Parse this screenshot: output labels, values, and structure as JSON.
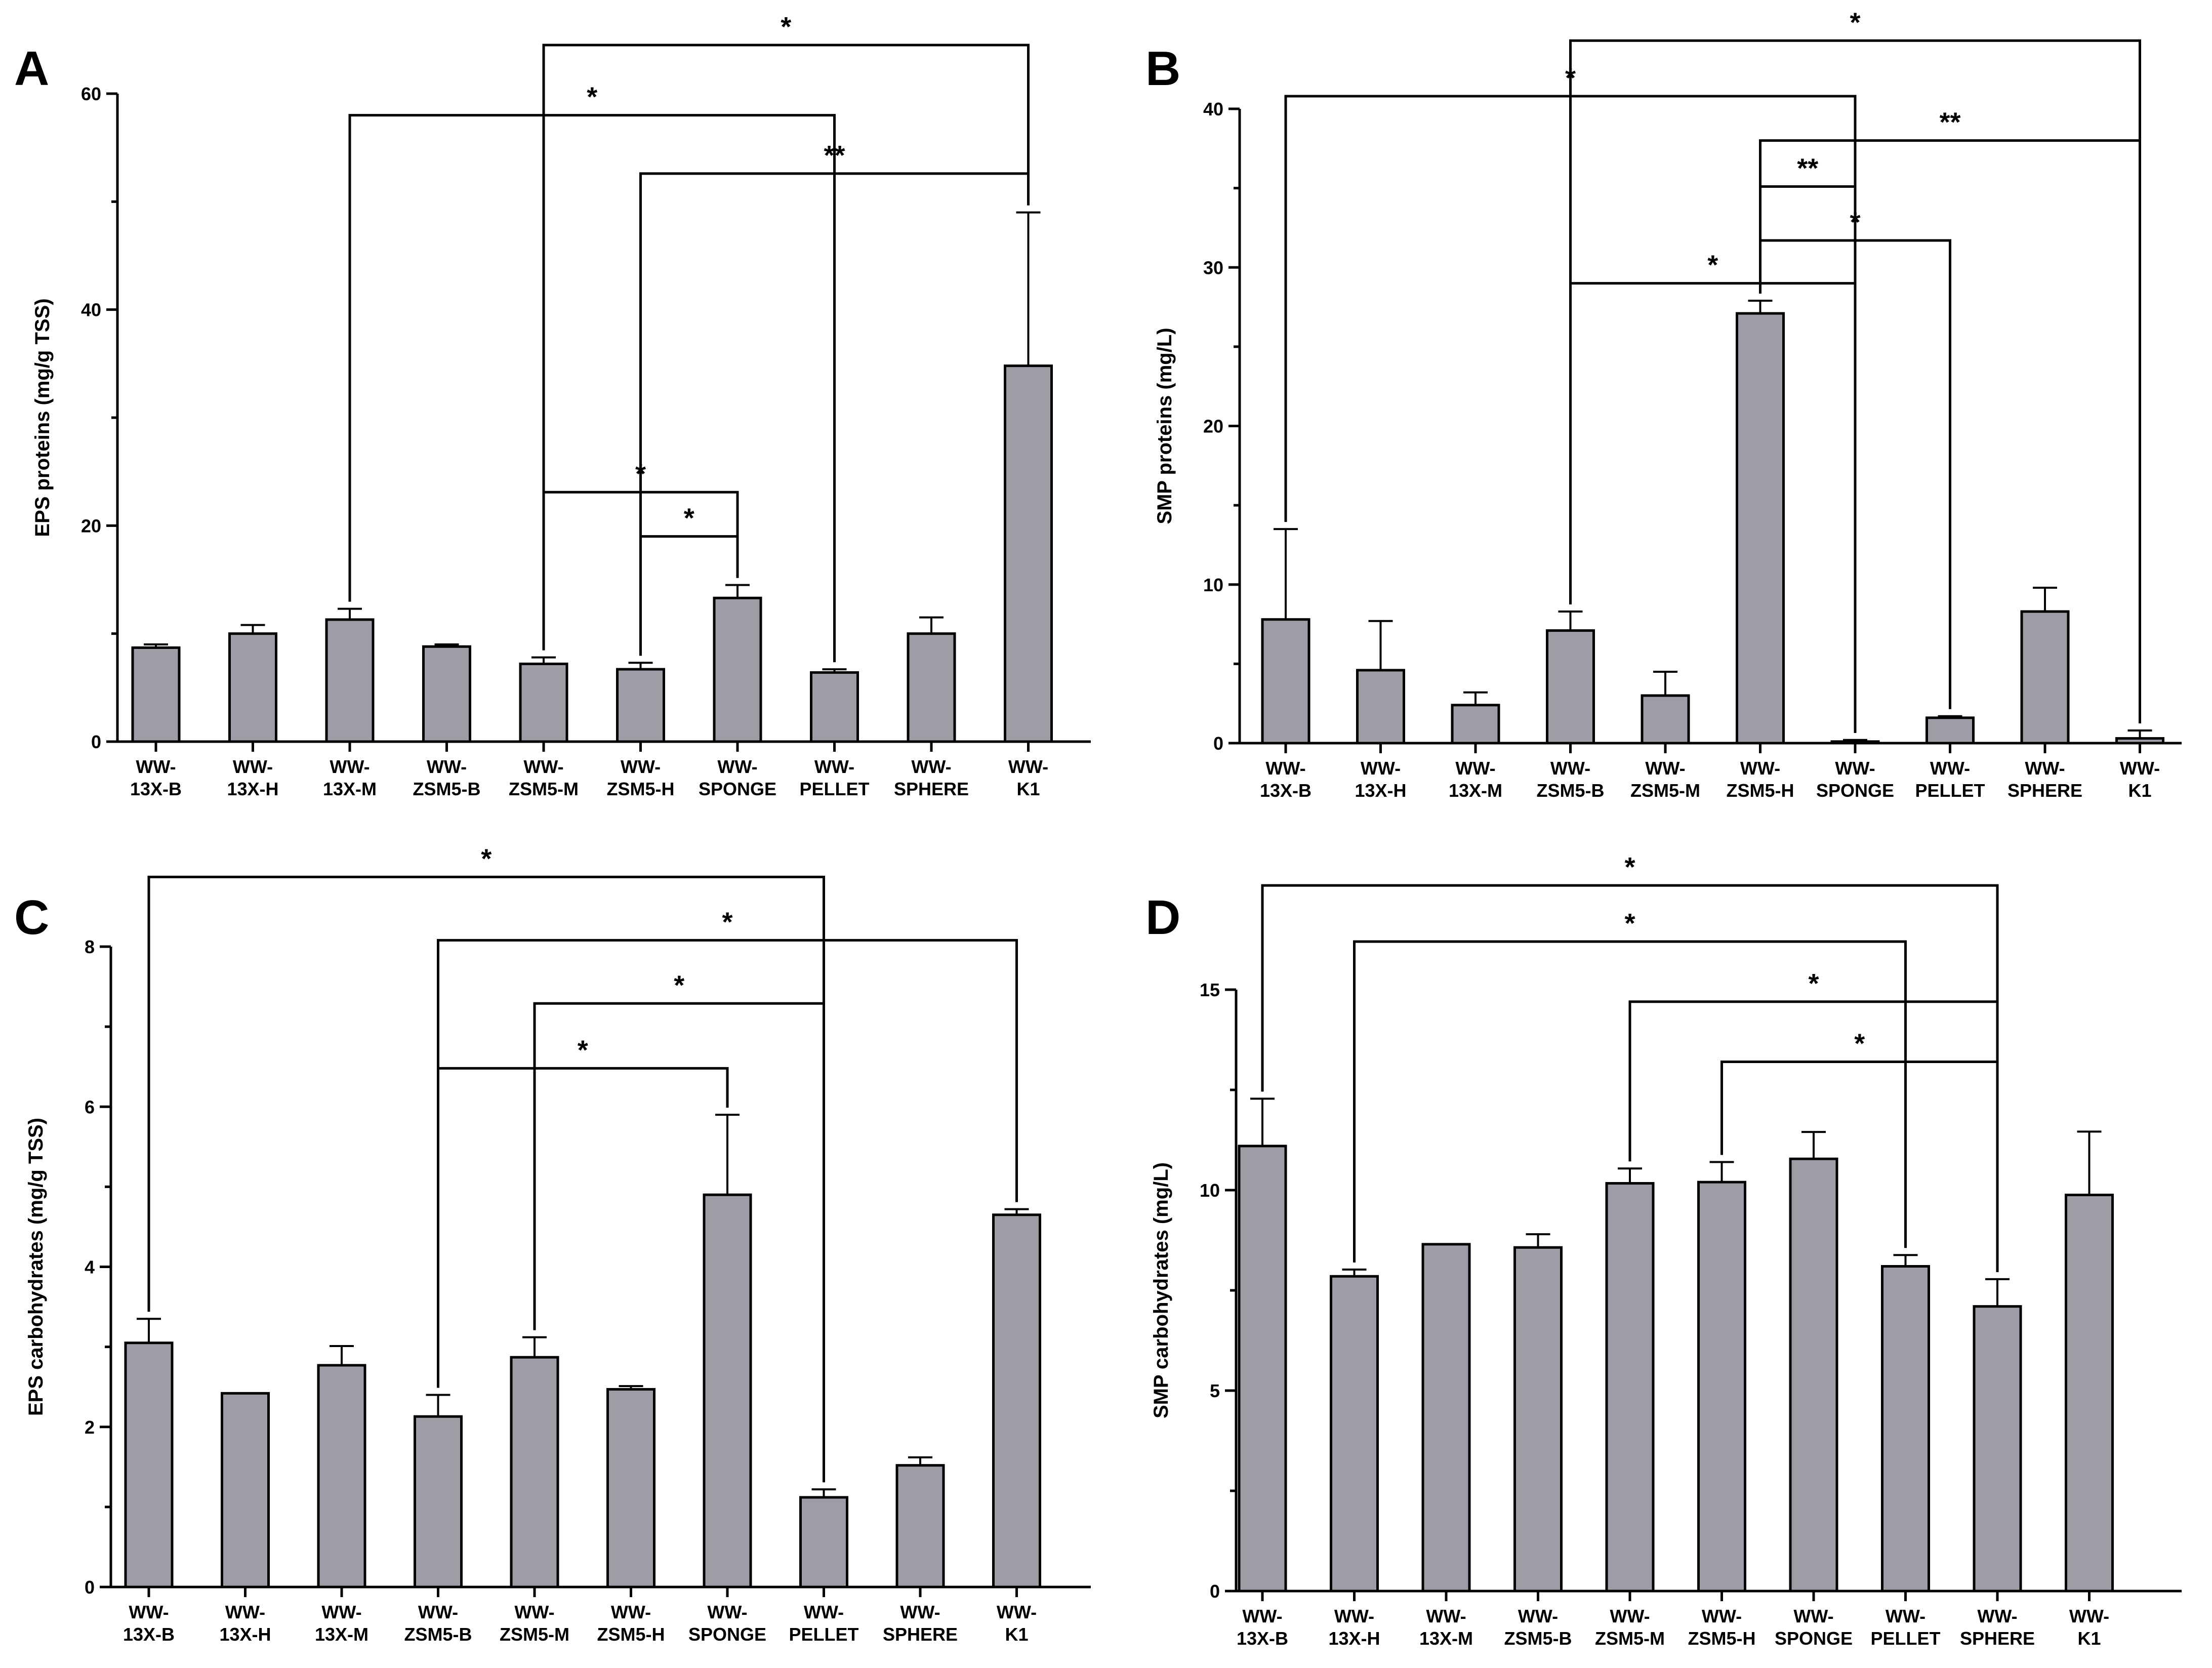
{
  "colors": {
    "bar_fill": "#9d9da5",
    "line": "#000000",
    "background": "#ffffff"
  },
  "chart_data": [
    {
      "panel": "A",
      "type": "bar",
      "ylabel": "EPS proteins (mg/g TSS)",
      "ylim": [
        0,
        60
      ],
      "yticks": [
        0,
        20,
        40,
        60
      ],
      "categories": [
        [
          "WW-",
          "13X-B"
        ],
        [
          "WW-",
          "13X-H"
        ],
        [
          "WW-",
          "13X-M"
        ],
        [
          "WW-",
          "ZSM5-B"
        ],
        [
          "WW-",
          "ZSM5-M"
        ],
        [
          "WW-",
          "ZSM5-H"
        ],
        [
          "WW-",
          "SPONGE"
        ],
        [
          "WW-",
          "PELLET"
        ],
        [
          "WW-",
          "SPHERE"
        ],
        [
          "WW-",
          "K1"
        ]
      ],
      "values": [
        8.7,
        10.0,
        11.3,
        8.8,
        7.2,
        6.7,
        13.3,
        6.4,
        10.0,
        34.8
      ],
      "errors": [
        0.3,
        0.8,
        1.0,
        0.2,
        0.6,
        0.6,
        1.2,
        0.3,
        1.5,
        14.2
      ],
      "significance": [
        {
          "from": 4,
          "to": 9,
          "level": 64.5,
          "label": "*"
        },
        {
          "from": 2,
          "to": 7,
          "level": 58.0,
          "label": "*"
        },
        {
          "from": 5,
          "to": 9,
          "level": 52.6,
          "label": "**"
        },
        {
          "from": 4,
          "to": 6,
          "level": 23.1,
          "label": "*"
        },
        {
          "from": 5,
          "to": 6,
          "level": 19.0,
          "label": "*"
        }
      ]
    },
    {
      "panel": "B",
      "type": "bar",
      "ylabel": "SMP proteins (mg/L)",
      "ylim": [
        0,
        40
      ],
      "yticks": [
        0,
        10,
        20,
        30,
        40
      ],
      "categories": [
        [
          "WW-",
          "13X-B"
        ],
        [
          "WW-",
          "13X-H"
        ],
        [
          "WW-",
          "13X-M"
        ],
        [
          "WW-",
          "ZSM5-B"
        ],
        [
          "WW-",
          "ZSM5-M"
        ],
        [
          "WW-",
          "ZSM5-H"
        ],
        [
          "WW-",
          "SPONGE"
        ],
        [
          "WW-",
          "PELLET"
        ],
        [
          "WW-",
          "SPHERE"
        ],
        [
          "WW-",
          "K1"
        ]
      ],
      "values": [
        7.8,
        4.6,
        2.4,
        7.1,
        3.0,
        27.1,
        0.1,
        1.6,
        8.3,
        0.3
      ],
      "errors": [
        5.7,
        3.1,
        0.8,
        1.2,
        1.5,
        0.8,
        0.1,
        0.1,
        1.5,
        0.5
      ],
      "significance": [
        {
          "from": 3,
          "to": 9,
          "level": 44.3,
          "label": "*"
        },
        {
          "from": 0,
          "to": 6,
          "level": 40.8,
          "label": "*"
        },
        {
          "from": 5,
          "to": 9,
          "level": 38.0,
          "label": "**"
        },
        {
          "from": 5,
          "to": 6,
          "level": 35.1,
          "label": "**"
        },
        {
          "from": 5,
          "to": 7,
          "level": 31.7,
          "label": "*"
        },
        {
          "from": 3,
          "to": 6,
          "level": 29.0,
          "label": "*"
        }
      ]
    },
    {
      "panel": "C",
      "type": "bar",
      "ylabel": "EPS carbohydrates (mg/g TSS)",
      "ylim": [
        0,
        8
      ],
      "yticks": [
        0,
        2,
        4,
        6,
        8
      ],
      "categories": [
        [
          "WW-",
          "13X-B"
        ],
        [
          "WW-",
          "13X-H"
        ],
        [
          "WW-",
          "13X-M"
        ],
        [
          "WW-",
          "ZSM5-B"
        ],
        [
          "WW-",
          "ZSM5-M"
        ],
        [
          "WW-",
          "ZSM5-H"
        ],
        [
          "WW-",
          "SPONGE"
        ],
        [
          "WW-",
          "PELLET"
        ],
        [
          "WW-",
          "SPHERE"
        ],
        [
          "WW-",
          "K1"
        ]
      ],
      "values": [
        3.05,
        2.42,
        2.77,
        2.13,
        2.87,
        2.47,
        4.9,
        1.12,
        1.52,
        4.65
      ],
      "errors": [
        0.3,
        0.0,
        0.24,
        0.27,
        0.25,
        0.04,
        1.0,
        0.1,
        0.1,
        0.07
      ],
      "significance": [
        {
          "from": 0,
          "to": 7,
          "level": 8.87,
          "label": "*"
        },
        {
          "from": 3,
          "to": 9,
          "level": 8.08,
          "label": "*"
        },
        {
          "from": 4,
          "to": 7,
          "level": 7.29,
          "label": "*"
        },
        {
          "from": 3,
          "to": 6,
          "level": 6.48,
          "label": "*"
        }
      ]
    },
    {
      "panel": "D",
      "type": "bar",
      "ylabel": "SMP carbohydrates (mg/L)",
      "ylim": [
        0,
        15
      ],
      "yticks": [
        0,
        5,
        10,
        15
      ],
      "categories": [
        [
          "WW-",
          "13X-B"
        ],
        [
          "WW-",
          "13X-H"
        ],
        [
          "WW-",
          "13X-M"
        ],
        [
          "WW-",
          "ZSM5-B"
        ],
        [
          "WW-",
          "ZSM5-M"
        ],
        [
          "WW-",
          "ZSM5-H"
        ],
        [
          "WW-",
          "SPONGE"
        ],
        [
          "WW-",
          "PELLET"
        ],
        [
          "WW-",
          "SPHERE"
        ],
        [
          "WW-",
          "K1"
        ]
      ],
      "values": [
        11.1,
        7.85,
        8.65,
        8.57,
        10.17,
        10.2,
        10.78,
        8.1,
        7.1,
        9.88
      ],
      "errors": [
        1.18,
        0.17,
        0.0,
        0.33,
        0.37,
        0.5,
        0.67,
        0.28,
        0.68,
        1.58
      ],
      "significance": [
        {
          "from": 0,
          "to": 8,
          "level": 17.6,
          "label": "*"
        },
        {
          "from": 1,
          "to": 7,
          "level": 16.2,
          "label": "*"
        },
        {
          "from": 4,
          "to": 8,
          "level": 14.7,
          "label": "*"
        },
        {
          "from": 5,
          "to": 8,
          "level": 13.2,
          "label": "*"
        }
      ]
    }
  ]
}
